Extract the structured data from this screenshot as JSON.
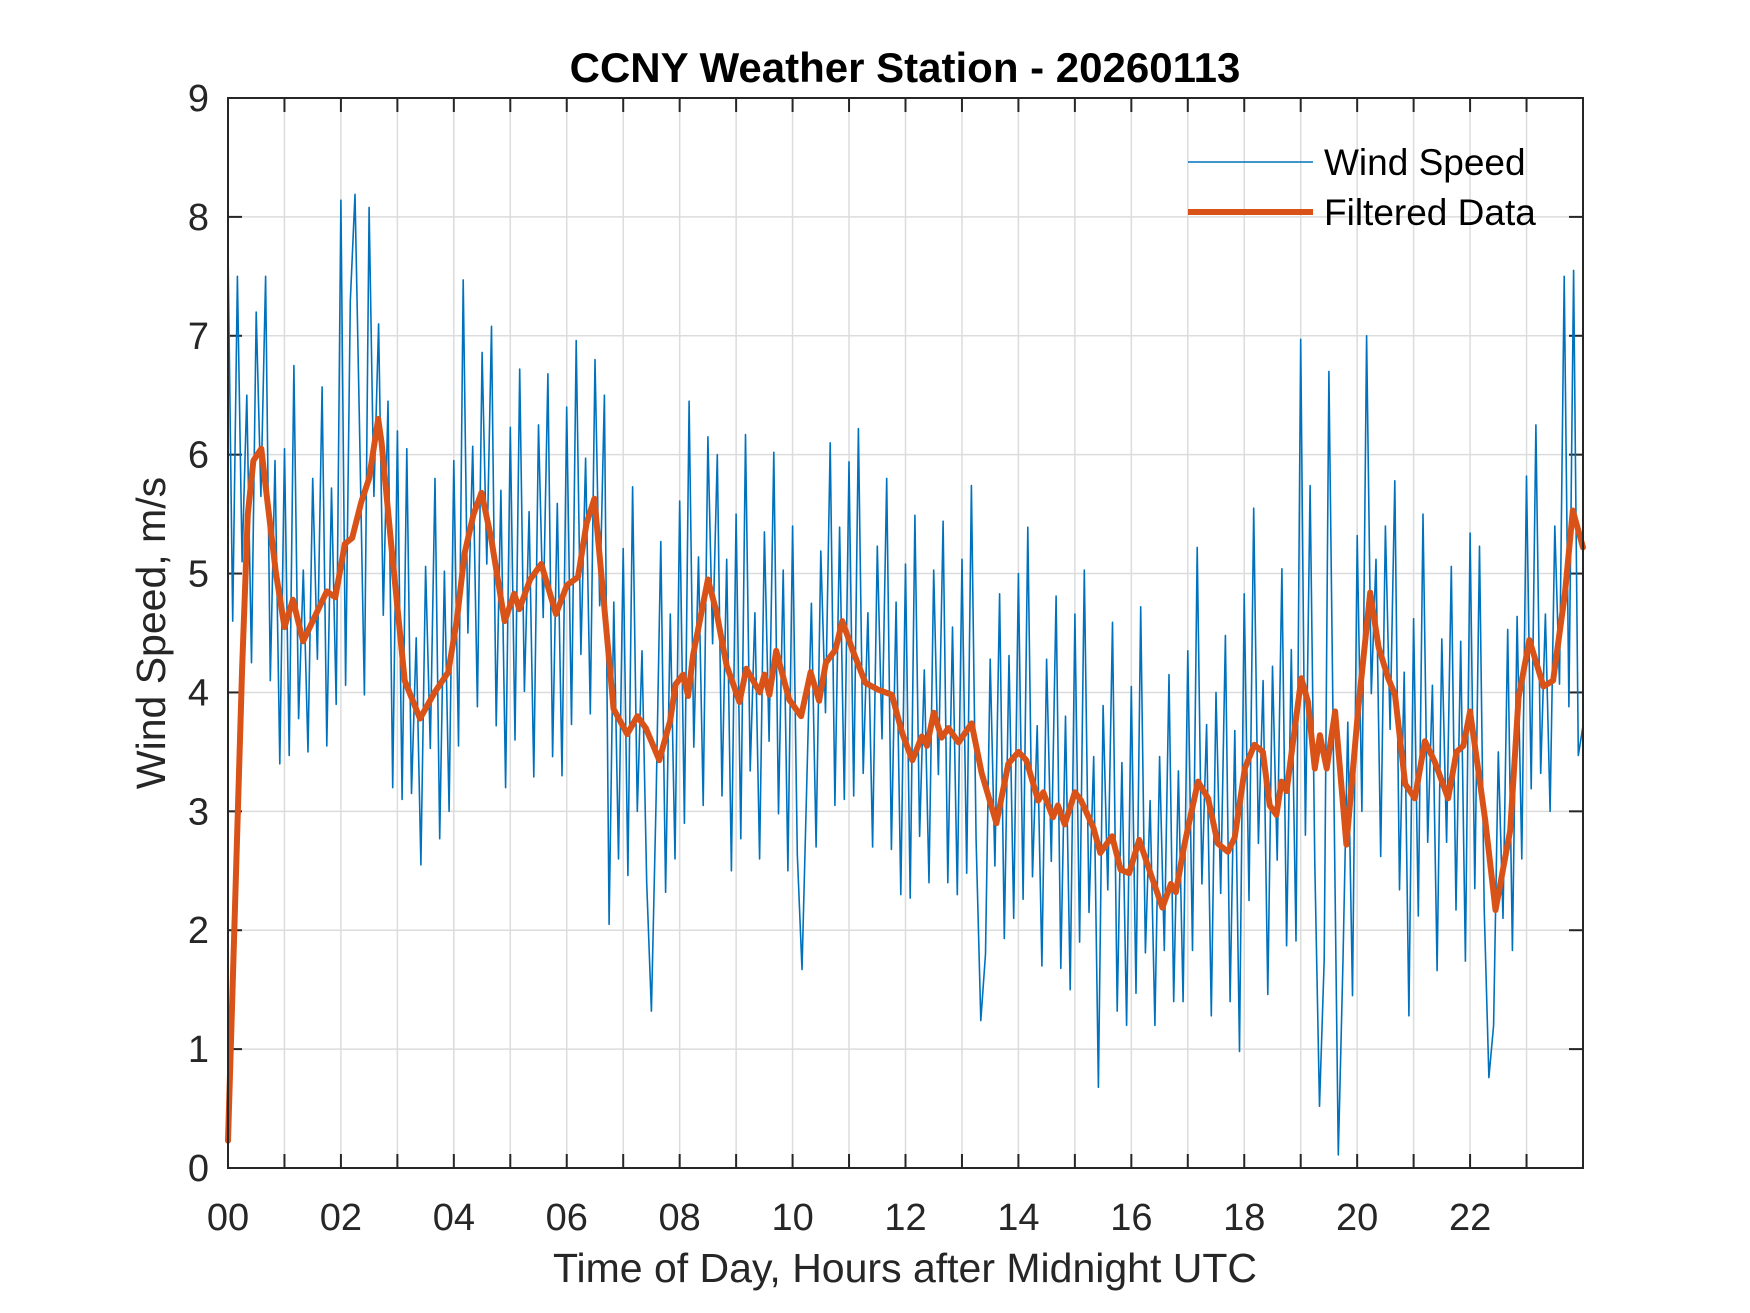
{
  "chart_data": {
    "type": "line",
    "title": "CCNY Weather Station - 20260113",
    "xlabel": "Time of Day, Hours after Midnight UTC",
    "ylabel": "Wind Speed, m/s",
    "xlim": [
      0,
      24
    ],
    "ylim": [
      0,
      9
    ],
    "grid": true,
    "x_ticks": [
      0,
      2,
      4,
      6,
      8,
      10,
      12,
      14,
      16,
      18,
      20,
      22
    ],
    "x_tick_labels": [
      "00",
      "02",
      "04",
      "06",
      "08",
      "10",
      "12",
      "14",
      "16",
      "18",
      "20",
      "22"
    ],
    "x_minor_ticks": [
      1,
      3,
      5,
      7,
      9,
      11,
      13,
      15,
      17,
      19,
      21,
      23
    ],
    "y_ticks": [
      0,
      1,
      2,
      3,
      4,
      5,
      6,
      7,
      8,
      9
    ],
    "y_tick_labels": [
      "0",
      "1",
      "2",
      "3",
      "4",
      "5",
      "6",
      "7",
      "8",
      "9"
    ],
    "legend": {
      "placement": "top-right",
      "entries": [
        "Wind Speed",
        "Filtered Data"
      ]
    },
    "series": [
      {
        "name": "Wind Speed",
        "color": "#0072BD",
        "x_step_hours": 0.083333,
        "values": [
          7.74,
          4.6,
          7.5,
          5.1,
          6.5,
          4.25,
          7.2,
          5.65,
          7.5,
          4.1,
          5.95,
          3.4,
          6.05,
          3.47,
          6.75,
          3.78,
          5.03,
          3.5,
          5.8,
          4.28,
          6.57,
          3.55,
          5.72,
          3.9,
          8.14,
          4.06,
          7.29,
          8.19,
          6.15,
          3.98,
          8.08,
          5.65,
          7.1,
          4.65,
          6.45,
          3.2,
          6.2,
          3.1,
          6.05,
          3.15,
          4.46,
          2.55,
          5.06,
          3.53,
          5.8,
          2.77,
          5.02,
          3.0,
          5.95,
          3.55,
          7.47,
          4.5,
          6.07,
          3.88,
          6.86,
          5.08,
          7.08,
          3.72,
          5.7,
          3.2,
          6.23,
          3.6,
          6.72,
          4.01,
          5.52,
          3.29,
          6.25,
          4.63,
          6.68,
          3.46,
          5.59,
          3.3,
          6.4,
          3.73,
          6.96,
          4.32,
          5.97,
          3.82,
          6.8,
          4.73,
          6.5,
          2.05,
          4.76,
          2.6,
          5.21,
          2.46,
          5.73,
          3.0,
          4.35,
          2.4,
          1.32,
          3.1,
          5.27,
          2.32,
          4.66,
          2.6,
          5.61,
          2.9,
          6.45,
          3.54,
          5.14,
          3.05,
          6.15,
          4.41,
          6.0,
          3.13,
          5.12,
          2.5,
          5.5,
          2.77,
          6.17,
          3.34,
          4.67,
          2.6,
          5.35,
          3.59,
          6.02,
          2.98,
          5.03,
          2.5,
          5.4,
          2.64,
          1.67,
          3.21,
          4.75,
          2.7,
          5.19,
          3.83,
          6.1,
          3.05,
          5.39,
          3.1,
          5.94,
          3.13,
          6.22,
          3.32,
          4.67,
          2.7,
          5.23,
          3.61,
          5.8,
          2.68,
          4.76,
          2.3,
          5.08,
          2.27,
          5.49,
          2.79,
          4.19,
          2.4,
          5.03,
          3.31,
          5.44,
          2.4,
          4.55,
          2.3,
          5.12,
          2.48,
          5.74,
          2.76,
          1.24,
          1.8,
          4.28,
          2.54,
          4.83,
          1.93,
          4.31,
          2.1,
          5.0,
          2.26,
          5.39,
          2.45,
          3.72,
          1.7,
          4.28,
          2.58,
          4.81,
          1.68,
          3.8,
          1.5,
          4.66,
          1.9,
          5.03,
          2.15,
          3.46,
          0.68,
          3.89,
          2.34,
          4.59,
          1.32,
          3.41,
          1.2,
          4.05,
          1.47,
          4.72,
          1.81,
          3.09,
          1.2,
          3.46,
          1.83,
          4.15,
          1.4,
          3.34,
          1.4,
          4.35,
          1.83,
          5.22,
          2.39,
          3.73,
          1.28,
          4.0,
          2.31,
          4.48,
          1.4,
          3.68,
          0.98,
          4.83,
          2.25,
          5.55,
          2.73,
          4.1,
          1.46,
          4.22,
          2.59,
          5.04,
          1.87,
          4.36,
          1.91,
          6.97,
          2.8,
          5.74,
          2.56,
          0.52,
          1.75,
          6.7,
          3.37,
          0.11,
          1.75,
          3.75,
          1.45,
          5.32,
          3.0,
          7.0,
          3.99,
          5.12,
          2.62,
          5.4,
          3.69,
          5.78,
          2.34,
          4.17,
          1.28,
          4.62,
          2.12,
          5.5,
          2.74,
          4.06,
          1.66,
          4.45,
          2.74,
          5.06,
          2.17,
          4.43,
          1.74,
          5.34,
          2.35,
          5.23,
          2.18,
          0.76,
          1.2,
          3.5,
          2.1,
          4.53,
          1.83,
          4.64,
          2.6,
          5.82,
          3.19,
          6.25,
          3.32,
          4.66,
          3.0,
          5.4,
          4.07,
          7.5,
          3.88,
          7.55,
          3.47,
          3.72
        ]
      },
      {
        "name": "Filtered Data",
        "color": "#D95319",
        "points": [
          [
            0.0,
            0.23
          ],
          [
            0.1,
            1.8
          ],
          [
            0.25,
            4.2
          ],
          [
            0.35,
            5.5
          ],
          [
            0.45,
            5.95
          ],
          [
            0.59,
            6.05
          ],
          [
            0.7,
            5.6
          ],
          [
            0.85,
            5.0
          ],
          [
            1.0,
            4.55
          ],
          [
            1.15,
            4.78
          ],
          [
            1.33,
            4.43
          ],
          [
            1.5,
            4.6
          ],
          [
            1.75,
            4.85
          ],
          [
            1.9,
            4.8
          ],
          [
            2.07,
            5.25
          ],
          [
            2.2,
            5.3
          ],
          [
            2.36,
            5.6
          ],
          [
            2.5,
            5.8
          ],
          [
            2.66,
            6.3
          ],
          [
            2.72,
            6.1
          ],
          [
            2.9,
            5.2
          ],
          [
            3.13,
            4.1
          ],
          [
            3.4,
            3.78
          ],
          [
            3.66,
            4.0
          ],
          [
            3.9,
            4.17
          ],
          [
            4.05,
            4.6
          ],
          [
            4.19,
            5.17
          ],
          [
            4.35,
            5.5
          ],
          [
            4.49,
            5.68
          ],
          [
            4.66,
            5.3
          ],
          [
            4.9,
            4.6
          ],
          [
            5.07,
            4.83
          ],
          [
            5.16,
            4.7
          ],
          [
            5.35,
            4.95
          ],
          [
            5.55,
            5.08
          ],
          [
            5.81,
            4.66
          ],
          [
            6.0,
            4.9
          ],
          [
            6.2,
            4.97
          ],
          [
            6.35,
            5.42
          ],
          [
            6.49,
            5.63
          ],
          [
            6.65,
            4.8
          ],
          [
            6.83,
            3.86
          ],
          [
            7.07,
            3.65
          ],
          [
            7.25,
            3.8
          ],
          [
            7.4,
            3.7
          ],
          [
            7.64,
            3.43
          ],
          [
            7.83,
            3.76
          ],
          [
            7.93,
            4.07
          ],
          [
            8.06,
            4.15
          ],
          [
            8.15,
            3.97
          ],
          [
            8.24,
            4.32
          ],
          [
            8.5,
            4.95
          ],
          [
            8.65,
            4.68
          ],
          [
            8.83,
            4.23
          ],
          [
            9.06,
            3.92
          ],
          [
            9.18,
            4.2
          ],
          [
            9.42,
            4.0
          ],
          [
            9.5,
            4.15
          ],
          [
            9.59,
            3.98
          ],
          [
            9.71,
            4.35
          ],
          [
            9.94,
            3.94
          ],
          [
            10.15,
            3.8
          ],
          [
            10.32,
            4.17
          ],
          [
            10.47,
            3.93
          ],
          [
            10.59,
            4.25
          ],
          [
            10.76,
            4.36
          ],
          [
            10.88,
            4.6
          ],
          [
            11.06,
            4.36
          ],
          [
            11.29,
            4.08
          ],
          [
            11.53,
            4.02
          ],
          [
            11.76,
            3.98
          ],
          [
            11.94,
            3.66
          ],
          [
            12.12,
            3.43
          ],
          [
            12.29,
            3.63
          ],
          [
            12.38,
            3.55
          ],
          [
            12.5,
            3.83
          ],
          [
            12.64,
            3.62
          ],
          [
            12.76,
            3.7
          ],
          [
            12.94,
            3.58
          ],
          [
            13.17,
            3.74
          ],
          [
            13.35,
            3.32
          ],
          [
            13.61,
            2.9
          ],
          [
            13.82,
            3.4
          ],
          [
            14.0,
            3.5
          ],
          [
            14.14,
            3.43
          ],
          [
            14.35,
            3.09
          ],
          [
            14.44,
            3.16
          ],
          [
            14.61,
            2.95
          ],
          [
            14.7,
            3.05
          ],
          [
            14.82,
            2.89
          ],
          [
            15.0,
            3.16
          ],
          [
            15.11,
            3.09
          ],
          [
            15.33,
            2.86
          ],
          [
            15.45,
            2.65
          ],
          [
            15.66,
            2.79
          ],
          [
            15.81,
            2.51
          ],
          [
            15.96,
            2.48
          ],
          [
            16.14,
            2.76
          ],
          [
            16.31,
            2.52
          ],
          [
            16.55,
            2.19
          ],
          [
            16.7,
            2.39
          ],
          [
            16.79,
            2.32
          ],
          [
            16.94,
            2.72
          ],
          [
            17.18,
            3.25
          ],
          [
            17.36,
            3.11
          ],
          [
            17.53,
            2.73
          ],
          [
            17.71,
            2.66
          ],
          [
            17.83,
            2.78
          ],
          [
            18.01,
            3.36
          ],
          [
            18.18,
            3.56
          ],
          [
            18.33,
            3.5
          ],
          [
            18.45,
            3.05
          ],
          [
            18.57,
            2.97
          ],
          [
            18.66,
            3.25
          ],
          [
            18.75,
            3.17
          ],
          [
            19.01,
            4.12
          ],
          [
            19.13,
            3.92
          ],
          [
            19.25,
            3.36
          ],
          [
            19.34,
            3.64
          ],
          [
            19.46,
            3.36
          ],
          [
            19.61,
            3.84
          ],
          [
            19.81,
            2.72
          ],
          [
            20.02,
            3.87
          ],
          [
            20.23,
            4.84
          ],
          [
            20.38,
            4.38
          ],
          [
            20.55,
            4.12
          ],
          [
            20.67,
            3.98
          ],
          [
            20.85,
            3.23
          ],
          [
            21.02,
            3.11
          ],
          [
            21.2,
            3.59
          ],
          [
            21.38,
            3.41
          ],
          [
            21.61,
            3.11
          ],
          [
            21.76,
            3.5
          ],
          [
            21.88,
            3.55
          ],
          [
            22.0,
            3.84
          ],
          [
            22.27,
            2.92
          ],
          [
            22.45,
            2.17
          ],
          [
            22.71,
            2.84
          ],
          [
            22.86,
            3.96
          ],
          [
            23.05,
            4.44
          ],
          [
            23.3,
            4.05
          ],
          [
            23.47,
            4.1
          ],
          [
            23.68,
            4.83
          ],
          [
            23.82,
            5.53
          ],
          [
            24.0,
            5.22
          ]
        ]
      }
    ]
  }
}
